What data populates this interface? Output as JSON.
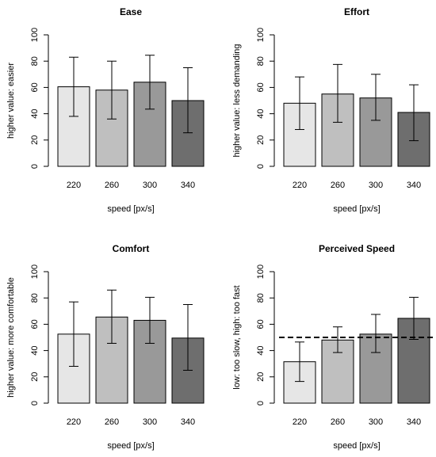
{
  "chart_data": [
    {
      "type": "bar",
      "title": "Ease",
      "xlabel": "speed [px/s]",
      "ylabel": "higher value: easier",
      "categories": [
        "220",
        "260",
        "300",
        "340"
      ],
      "values": [
        60.5,
        58,
        64,
        50
      ],
      "error_low": [
        38,
        36,
        43.5,
        25.5
      ],
      "error_high": [
        83,
        80,
        84.5,
        75
      ],
      "ylim": [
        0,
        100
      ],
      "yticks": [
        "0",
        "20",
        "40",
        "60",
        "80",
        "100"
      ],
      "bar_colors": [
        "#e6e6e6",
        "#bfbfbf",
        "#999999",
        "#6e6e6e"
      ]
    },
    {
      "type": "bar",
      "title": "Effort",
      "xlabel": "speed [px/s]",
      "ylabel": "higher value: less demanding",
      "categories": [
        "220",
        "260",
        "300",
        "340"
      ],
      "values": [
        48,
        55,
        52,
        41
      ],
      "error_low": [
        28,
        33.5,
        35,
        19.5
      ],
      "error_high": [
        68,
        77.5,
        70,
        62
      ],
      "ylim": [
        0,
        100
      ],
      "yticks": [
        "0",
        "20",
        "40",
        "60",
        "80",
        "100"
      ],
      "bar_colors": [
        "#e6e6e6",
        "#bfbfbf",
        "#999999",
        "#6e6e6e"
      ]
    },
    {
      "type": "bar",
      "title": "Comfort",
      "xlabel": "speed [px/s]",
      "ylabel": "higher value: more comfortable",
      "categories": [
        "220",
        "260",
        "300",
        "340"
      ],
      "values": [
        52.5,
        65.5,
        63,
        49.5
      ],
      "error_low": [
        28,
        45.5,
        45.5,
        25
      ],
      "error_high": [
        77,
        86,
        80.5,
        75
      ],
      "ylim": [
        0,
        100
      ],
      "yticks": [
        "0",
        "20",
        "40",
        "60",
        "80",
        "100"
      ],
      "bar_colors": [
        "#e6e6e6",
        "#bfbfbf",
        "#999999",
        "#6e6e6e"
      ]
    },
    {
      "type": "bar",
      "title": "Perceived Speed",
      "xlabel": "speed [px/s]",
      "ylabel": "low: too slow, high: too fast",
      "categories": [
        "220",
        "260",
        "300",
        "340"
      ],
      "values": [
        31.5,
        48,
        52.5,
        64.5
      ],
      "error_low": [
        16.5,
        38.5,
        38.5,
        48.5
      ],
      "error_high": [
        46.5,
        58,
        67.5,
        80.5
      ],
      "reference_line": 50,
      "ylim": [
        0,
        100
      ],
      "yticks": [
        "0",
        "20",
        "40",
        "60",
        "80",
        "100"
      ],
      "bar_colors": [
        "#e6e6e6",
        "#bfbfbf",
        "#999999",
        "#6e6e6e"
      ]
    }
  ]
}
